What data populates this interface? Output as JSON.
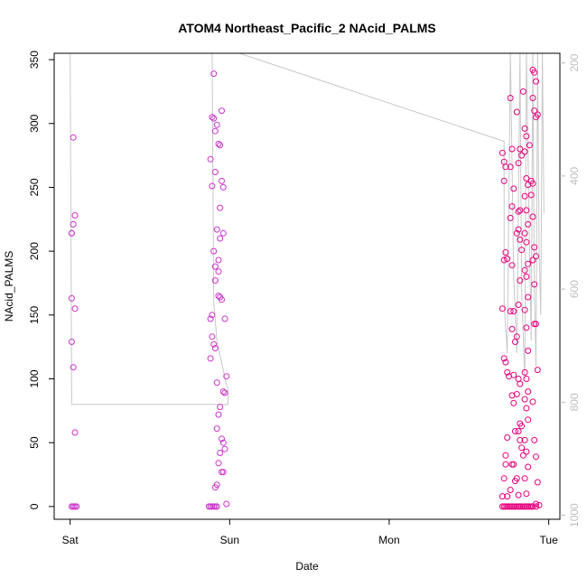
{
  "chart_data": {
    "type": "scatter",
    "title": "ATOM4 Northeast_Pacific_2 NAcid_PALMS",
    "xlabel": "Date",
    "ylabel": "NAcid_PALMS",
    "x_unit": "days from Sat 00:00",
    "xlim": [
      -0.1,
      3.07
    ],
    "ylim": [
      -10,
      355
    ],
    "y_ticks": [
      0,
      50,
      100,
      150,
      200,
      250,
      300,
      350
    ],
    "x_ticks": [
      {
        "value": 0,
        "label": "Sat"
      },
      {
        "value": 1,
        "label": "Sun"
      },
      {
        "value": 2,
        "label": "Mon"
      },
      {
        "value": 3,
        "label": "Tue"
      }
    ],
    "y2_ticks": [
      200,
      400,
      600,
      800,
      1000
    ],
    "y2_lim": [
      1007,
      183
    ],
    "y2_inverted": true,
    "colors": {
      "points": "#e6007e",
      "points_alt": "#cc33cc",
      "line": "#c8c8c8",
      "y2_axis": "#bdbdbd"
    },
    "line_series": [
      [
        0.0,
        355
      ],
      [
        0.01,
        80
      ],
      [
        0.99,
        80
      ],
      [
        0.99,
        92
      ],
      [
        0.98,
        95
      ],
      [
        0.92,
        130
      ],
      [
        0.9,
        160
      ],
      [
        0.89,
        355
      ],
      [
        1.06,
        355
      ],
      [
        2.72,
        286
      ],
      [
        2.72,
        160
      ],
      [
        2.74,
        120
      ],
      [
        2.76,
        355
      ],
      [
        2.78,
        180
      ],
      [
        2.8,
        120
      ],
      [
        2.82,
        355
      ],
      [
        2.83,
        170
      ],
      [
        2.85,
        100
      ],
      [
        2.86,
        355
      ],
      [
        2.88,
        200
      ],
      [
        2.89,
        130
      ],
      [
        2.9,
        355
      ],
      [
        2.91,
        170
      ],
      [
        2.92,
        110
      ],
      [
        2.93,
        355
      ],
      [
        2.94,
        200
      ],
      [
        2.95,
        150
      ],
      [
        2.96,
        355
      ],
      [
        2.97,
        230
      ]
    ],
    "series": [
      {
        "points": [
          [
            0.01,
            0
          ],
          [
            0.02,
            0
          ],
          [
            0.03,
            0
          ],
          [
            0.04,
            0
          ],
          [
            0.02,
            0
          ],
          [
            0.01,
            214
          ],
          [
            0.02,
            221
          ],
          [
            0.03,
            228
          ],
          [
            0.02,
            289
          ],
          [
            0.01,
            163
          ],
          [
            0.03,
            155
          ],
          [
            0.01,
            129
          ],
          [
            0.02,
            109
          ],
          [
            0.03,
            58
          ],
          [
            0.01,
            214
          ],
          [
            0.88,
            0
          ],
          [
            0.89,
            0
          ],
          [
            0.9,
            0
          ],
          [
            0.91,
            0
          ],
          [
            0.92,
            0
          ],
          [
            0.87,
            0
          ],
          [
            0.89,
            305
          ],
          [
            0.9,
            304
          ],
          [
            0.91,
            294
          ],
          [
            0.92,
            299
          ],
          [
            0.88,
            272
          ],
          [
            0.89,
            251
          ],
          [
            0.93,
            284
          ],
          [
            0.94,
            283
          ],
          [
            0.95,
            310
          ],
          [
            0.91,
            262
          ],
          [
            0.9,
            339
          ],
          [
            0.88,
            147
          ],
          [
            0.89,
            150
          ],
          [
            0.9,
            127
          ],
          [
            0.91,
            124
          ],
          [
            0.92,
            97
          ],
          [
            0.89,
            133
          ],
          [
            0.88,
            116
          ],
          [
            0.9,
            200
          ],
          [
            0.91,
            188
          ],
          [
            0.92,
            217
          ],
          [
            0.93,
            193
          ],
          [
            0.94,
            164
          ],
          [
            0.95,
            162
          ],
          [
            0.93,
            165
          ],
          [
            0.94,
            210
          ],
          [
            0.96,
            214
          ],
          [
            0.95,
            255
          ],
          [
            0.96,
            250
          ],
          [
            0.94,
            234
          ],
          [
            0.93,
            184
          ],
          [
            0.91,
            177
          ],
          [
            0.92,
            61
          ],
          [
            0.93,
            72
          ],
          [
            0.94,
            78
          ],
          [
            0.95,
            53
          ],
          [
            0.96,
            50
          ],
          [
            0.97,
            45
          ],
          [
            0.94,
            42
          ],
          [
            0.93,
            34
          ],
          [
            0.92,
            17
          ],
          [
            0.91,
            15
          ],
          [
            0.95,
            27
          ],
          [
            0.96,
            27
          ],
          [
            0.97,
            89
          ],
          [
            0.98,
            102
          ],
          [
            0.97,
            147
          ],
          [
            0.98,
            2
          ],
          [
            0.96,
            90
          ],
          [
            2.71,
            0
          ],
          [
            2.72,
            0
          ],
          [
            2.73,
            0
          ],
          [
            2.74,
            0
          ],
          [
            2.75,
            0
          ],
          [
            2.76,
            0
          ],
          [
            2.77,
            0
          ],
          [
            2.78,
            0
          ],
          [
            2.79,
            0
          ],
          [
            2.8,
            0
          ],
          [
            2.81,
            0
          ],
          [
            2.82,
            0
          ],
          [
            2.83,
            0
          ],
          [
            2.84,
            0
          ],
          [
            2.85,
            0
          ],
          [
            2.86,
            0
          ],
          [
            2.87,
            0
          ],
          [
            2.88,
            0
          ],
          [
            2.89,
            0
          ],
          [
            2.9,
            0
          ],
          [
            2.92,
            0
          ],
          [
            2.94,
            1
          ],
          [
            2.71,
            277
          ],
          [
            2.72,
            270
          ],
          [
            2.73,
            266
          ],
          [
            2.72,
            255
          ],
          [
            2.73,
            199
          ],
          [
            2.72,
            193
          ],
          [
            2.74,
            194
          ],
          [
            2.71,
            155
          ],
          [
            2.72,
            116
          ],
          [
            2.73,
            113
          ],
          [
            2.74,
            105
          ],
          [
            2.75,
            102
          ],
          [
            2.73,
            40
          ],
          [
            2.72,
            22
          ],
          [
            2.74,
            8
          ],
          [
            2.71,
            8
          ],
          [
            2.73,
            33
          ],
          [
            2.74,
            54
          ],
          [
            2.76,
            320
          ],
          [
            2.77,
            280
          ],
          [
            2.76,
            266
          ],
          [
            2.77,
            235
          ],
          [
            2.76,
            226
          ],
          [
            2.78,
            249
          ],
          [
            2.77,
            189
          ],
          [
            2.76,
            153
          ],
          [
            2.78,
            153
          ],
          [
            2.79,
            129
          ],
          [
            2.77,
            139
          ],
          [
            2.78,
            103
          ],
          [
            2.77,
            87
          ],
          [
            2.78,
            81
          ],
          [
            2.79,
            59
          ],
          [
            2.77,
            33
          ],
          [
            2.78,
            33
          ],
          [
            2.76,
            13
          ],
          [
            2.79,
            20
          ],
          [
            2.8,
            309
          ],
          [
            2.81,
            269
          ],
          [
            2.82,
            280
          ],
          [
            2.83,
            275
          ],
          [
            2.82,
            232
          ],
          [
            2.81,
            231
          ],
          [
            2.8,
            214
          ],
          [
            2.81,
            217
          ],
          [
            2.82,
            209
          ],
          [
            2.83,
            201
          ],
          [
            2.82,
            177
          ],
          [
            2.81,
            158
          ],
          [
            2.8,
            133
          ],
          [
            2.81,
            100
          ],
          [
            2.82,
            96
          ],
          [
            2.8,
            88
          ],
          [
            2.81,
            59
          ],
          [
            2.82,
            52
          ],
          [
            2.83,
            46
          ],
          [
            2.82,
            65
          ],
          [
            2.83,
            63
          ],
          [
            2.84,
            40
          ],
          [
            2.8,
            22
          ],
          [
            2.81,
            9
          ],
          [
            2.84,
            325
          ],
          [
            2.85,
            296
          ],
          [
            2.86,
            290
          ],
          [
            2.85,
            278
          ],
          [
            2.86,
            257
          ],
          [
            2.87,
            252
          ],
          [
            2.85,
            243
          ],
          [
            2.86,
            232
          ],
          [
            2.87,
            221
          ],
          [
            2.85,
            214
          ],
          [
            2.86,
            207
          ],
          [
            2.87,
            190
          ],
          [
            2.85,
            185
          ],
          [
            2.86,
            180
          ],
          [
            2.87,
            164
          ],
          [
            2.85,
            154
          ],
          [
            2.86,
            140
          ],
          [
            2.87,
            122
          ],
          [
            2.85,
            105
          ],
          [
            2.86,
            100
          ],
          [
            2.87,
            90
          ],
          [
            2.85,
            84
          ],
          [
            2.86,
            77
          ],
          [
            2.87,
            68
          ],
          [
            2.85,
            52
          ],
          [
            2.86,
            43
          ],
          [
            2.87,
            31
          ],
          [
            2.85,
            22
          ],
          [
            2.86,
            10
          ],
          [
            2.9,
            342
          ],
          [
            2.91,
            340
          ],
          [
            2.92,
            333
          ],
          [
            2.9,
            320
          ],
          [
            2.91,
            310
          ],
          [
            2.92,
            305
          ],
          [
            2.93,
            307
          ],
          [
            2.9,
            253
          ],
          [
            2.89,
            244
          ],
          [
            2.9,
            227
          ],
          [
            2.91,
            203
          ],
          [
            2.92,
            196
          ],
          [
            2.9,
            193
          ],
          [
            2.91,
            174
          ],
          [
            2.92,
            143
          ],
          [
            2.91,
            143
          ],
          [
            2.93,
            107
          ],
          [
            2.9,
            82
          ],
          [
            2.91,
            52
          ],
          [
            2.92,
            39
          ],
          [
            2.93,
            19
          ],
          [
            2.92,
            2
          ],
          [
            2.88,
            283
          ],
          [
            2.89,
            255
          ]
        ]
      }
    ]
  }
}
